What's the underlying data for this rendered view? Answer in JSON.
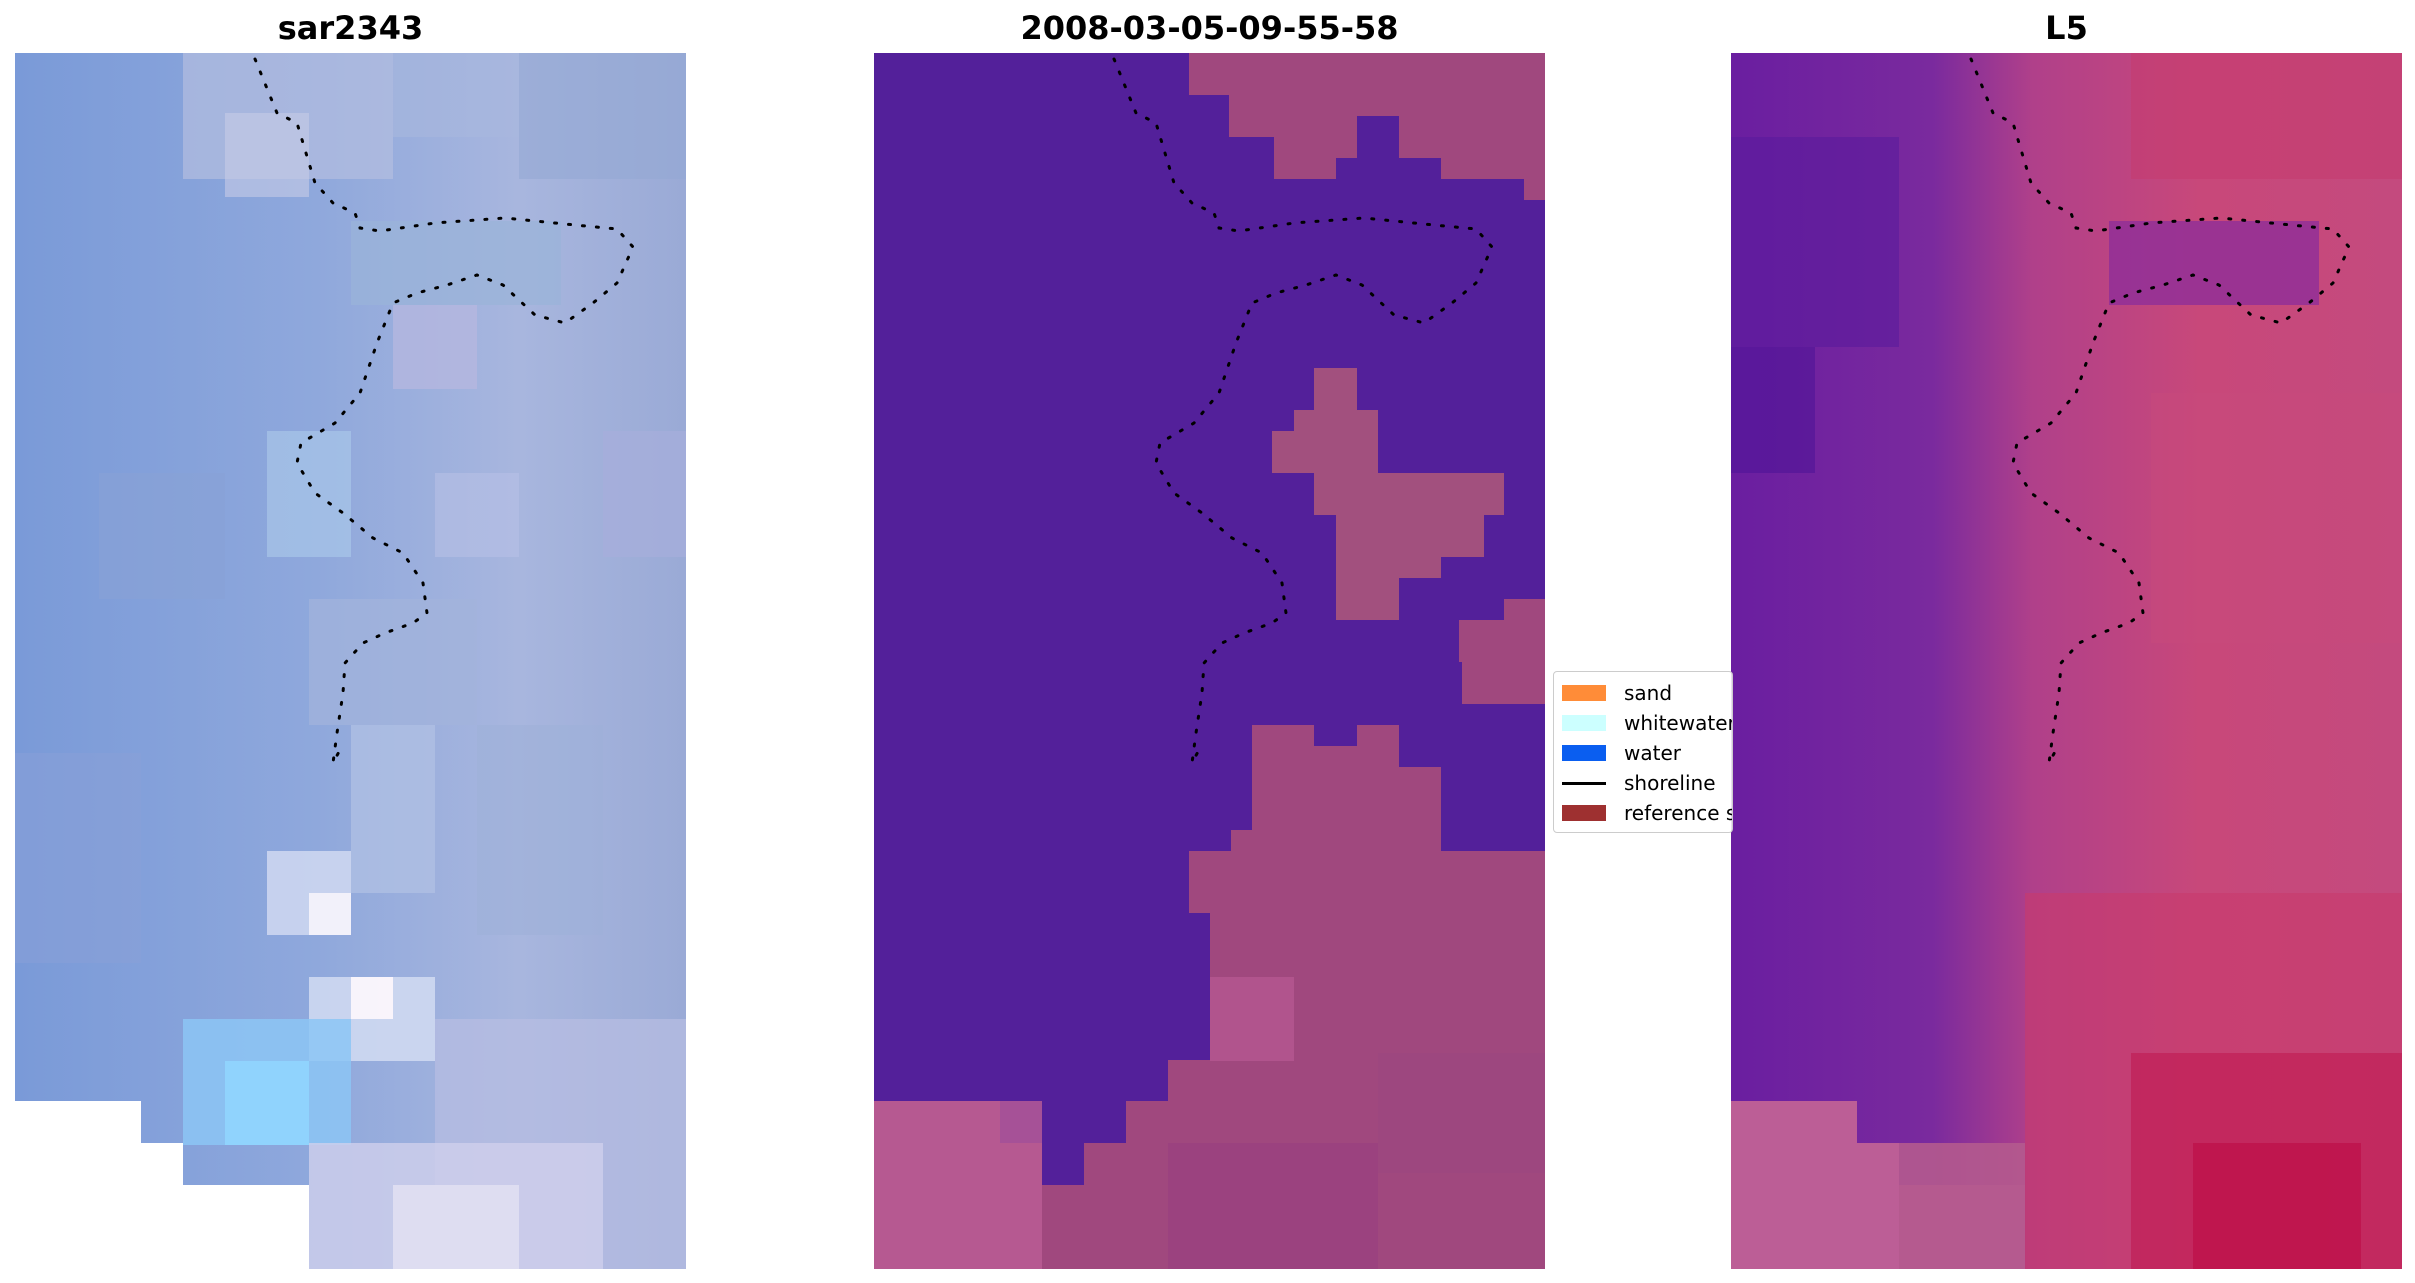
{
  "panels": {
    "left": {
      "title": "sar2343"
    },
    "middle": {
      "title": "2008-03-05-09-55-58"
    },
    "right": {
      "title": "L5"
    }
  },
  "legend": {
    "items": [
      {
        "label": "sand",
        "kind": "patch",
        "color": "#ff8c38"
      },
      {
        "label": "whitewater",
        "kind": "patch",
        "color": "#ccffff"
      },
      {
        "label": "water",
        "kind": "patch",
        "color": "#0a5ef0"
      },
      {
        "label": "shoreline",
        "kind": "line",
        "color": "#000000"
      },
      {
        "label": "reference shoreline",
        "kind": "patch",
        "color": "#9e3030"
      }
    ]
  },
  "colors": {
    "classified_water": "#53209a",
    "classified_land": "#a0487e",
    "sar_base": "#7f9fd6",
    "l5_water": "#6a1ea0",
    "l5_land": "#c83c70"
  }
}
